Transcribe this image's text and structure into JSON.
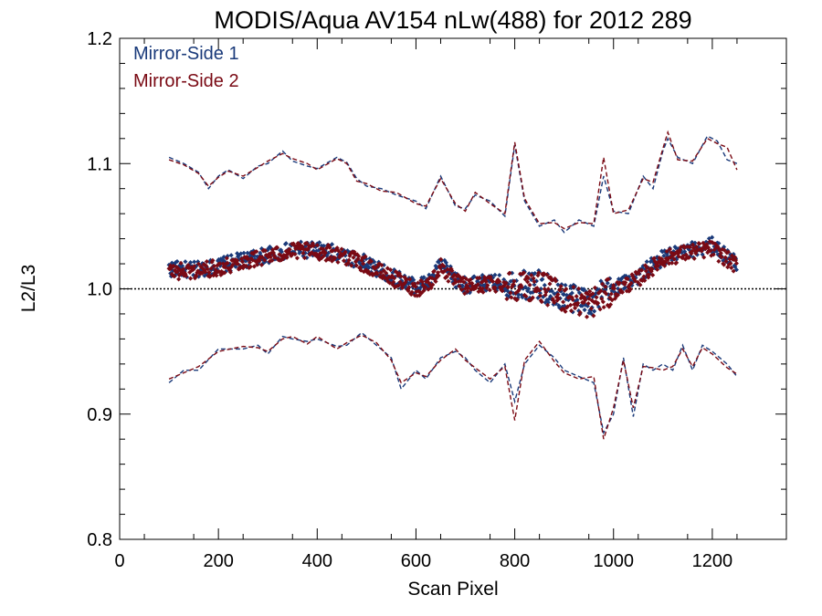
{
  "chart_data": {
    "type": "scatter",
    "title": "MODIS/Aqua AV154 nLw(488) for 2012 289",
    "xlabel": "Scan Pixel",
    "ylabel": "L2/L3",
    "xlim": [
      0,
      1350
    ],
    "ylim": [
      0.8,
      1.2
    ],
    "x_ticks": [
      0,
      200,
      400,
      600,
      800,
      1000,
      1200
    ],
    "x_tick_labels": [
      "0",
      "200",
      "400",
      "600",
      "800",
      "1000",
      "1200"
    ],
    "y_ticks": [
      0.8,
      0.9,
      1.0,
      1.1,
      1.2
    ],
    "y_tick_labels": [
      "0.8",
      "0.9",
      "1.0",
      "1.1",
      "1.2"
    ],
    "reference_line": {
      "y": 1.0,
      "style": "dotted"
    },
    "legend_position": "top-left",
    "colors": {
      "Mirror-Side 1": "#1a3a7a",
      "Mirror-Side 2": "#7a0a14"
    },
    "series": [
      {
        "name": "Mirror-Side 1",
        "mean_points": {
          "x": [
            100,
            150,
            200,
            250,
            300,
            350,
            400,
            450,
            500,
            550,
            600,
            630,
            650,
            680,
            700,
            750,
            800,
            850,
            900,
            950,
            1000,
            1050,
            1100,
            1150,
            1200,
            1250
          ],
          "y": [
            1.016,
            1.015,
            1.018,
            1.023,
            1.027,
            1.031,
            1.031,
            1.028,
            1.02,
            1.01,
            1.002,
            1.006,
            1.02,
            1.007,
            1.003,
            1.005,
            1.004,
            1.003,
            0.994,
            0.99,
            1.0,
            1.01,
            1.025,
            1.03,
            1.035,
            1.02
          ]
        },
        "upper_envelope": {
          "x": [
            100,
            130,
            160,
            180,
            200,
            220,
            250,
            280,
            300,
            330,
            350,
            380,
            400,
            440,
            460,
            480,
            500,
            530,
            560,
            600,
            620,
            650,
            680,
            700,
            720,
            750,
            780,
            800,
            820,
            850,
            880,
            900,
            930,
            960,
            980,
            1000,
            1030,
            1060,
            1080,
            1100,
            1110,
            1130,
            1160,
            1190,
            1210,
            1230,
            1250
          ],
          "y": [
            1.105,
            1.1,
            1.093,
            1.08,
            1.09,
            1.095,
            1.088,
            1.098,
            1.1,
            1.11,
            1.102,
            1.098,
            1.096,
            1.105,
            1.101,
            1.088,
            1.082,
            1.08,
            1.075,
            1.07,
            1.064,
            1.09,
            1.066,
            1.064,
            1.075,
            1.07,
            1.058,
            1.115,
            1.07,
            1.05,
            1.055,
            1.045,
            1.055,
            1.05,
            1.09,
            1.062,
            1.06,
            1.09,
            1.08,
            1.11,
            1.12,
            1.105,
            1.1,
            1.122,
            1.118,
            1.103,
            1.1
          ]
        },
        "lower_envelope": {
          "x": [
            100,
            130,
            160,
            200,
            250,
            280,
            300,
            330,
            350,
            380,
            400,
            440,
            460,
            490,
            520,
            550,
            570,
            600,
            620,
            650,
            680,
            700,
            720,
            750,
            780,
            800,
            820,
            850,
            880,
            900,
            930,
            960,
            980,
            1000,
            1020,
            1040,
            1060,
            1080,
            1100,
            1120,
            1140,
            1160,
            1180,
            1200,
            1230,
            1250
          ],
          "y": [
            0.925,
            0.935,
            0.935,
            0.952,
            0.952,
            0.955,
            0.948,
            0.962,
            0.96,
            0.958,
            0.96,
            0.954,
            0.955,
            0.965,
            0.955,
            0.945,
            0.92,
            0.935,
            0.928,
            0.945,
            0.95,
            0.945,
            0.935,
            0.925,
            0.94,
            0.91,
            0.94,
            0.955,
            0.945,
            0.935,
            0.93,
            0.925,
            0.885,
            0.9,
            0.945,
            0.898,
            0.94,
            0.935,
            0.94,
            0.935,
            0.955,
            0.935,
            0.955,
            0.95,
            0.94,
            0.93
          ]
        }
      },
      {
        "name": "Mirror-Side 2",
        "mean_points": {
          "x": [
            100,
            150,
            200,
            250,
            300,
            350,
            400,
            450,
            500,
            550,
            600,
            630,
            650,
            680,
            700,
            750,
            800,
            850,
            900,
            950,
            1000,
            1050,
            1100,
            1150,
            1200,
            1250
          ],
          "y": [
            1.014,
            1.014,
            1.017,
            1.022,
            1.026,
            1.03,
            1.03,
            1.027,
            1.019,
            1.009,
            1.0,
            1.005,
            1.018,
            1.006,
            1.002,
            1.004,
            1.003,
            1.002,
            0.993,
            0.988,
            0.998,
            1.008,
            1.024,
            1.029,
            1.032,
            1.018
          ]
        },
        "upper_envelope": {
          "x": [
            100,
            130,
            160,
            180,
            200,
            220,
            250,
            280,
            300,
            330,
            350,
            380,
            400,
            440,
            460,
            480,
            500,
            530,
            560,
            600,
            620,
            650,
            680,
            700,
            720,
            750,
            780,
            800,
            820,
            850,
            880,
            900,
            930,
            960,
            980,
            1000,
            1030,
            1060,
            1080,
            1100,
            1110,
            1130,
            1160,
            1190,
            1210,
            1230,
            1250
          ],
          "y": [
            1.103,
            1.099,
            1.092,
            1.082,
            1.089,
            1.094,
            1.09,
            1.097,
            1.102,
            1.108,
            1.104,
            1.1,
            1.095,
            1.104,
            1.1,
            1.086,
            1.084,
            1.078,
            1.077,
            1.068,
            1.066,
            1.088,
            1.068,
            1.062,
            1.077,
            1.068,
            1.06,
            1.117,
            1.072,
            1.052,
            1.053,
            1.048,
            1.053,
            1.052,
            1.105,
            1.06,
            1.063,
            1.088,
            1.085,
            1.112,
            1.125,
            1.103,
            1.102,
            1.12,
            1.116,
            1.113,
            1.095
          ]
        },
        "lower_envelope": {
          "x": [
            100,
            130,
            160,
            200,
            250,
            280,
            300,
            330,
            350,
            380,
            400,
            440,
            460,
            490,
            520,
            550,
            570,
            600,
            620,
            650,
            680,
            700,
            720,
            750,
            780,
            800,
            820,
            850,
            880,
            900,
            930,
            960,
            980,
            1000,
            1020,
            1040,
            1060,
            1080,
            1100,
            1120,
            1140,
            1160,
            1180,
            1200,
            1230,
            1250
          ],
          "y": [
            0.928,
            0.933,
            0.938,
            0.95,
            0.954,
            0.953,
            0.95,
            0.96,
            0.962,
            0.956,
            0.962,
            0.952,
            0.957,
            0.963,
            0.957,
            0.943,
            0.925,
            0.933,
            0.93,
            0.943,
            0.952,
            0.943,
            0.937,
            0.928,
            0.938,
            0.895,
            0.943,
            0.958,
            0.942,
            0.933,
            0.928,
            0.93,
            0.88,
            0.905,
            0.943,
            0.905,
            0.938,
            0.937,
            0.935,
            0.938,
            0.952,
            0.938,
            0.953,
            0.948,
            0.937,
            0.932
          ]
        }
      }
    ]
  }
}
